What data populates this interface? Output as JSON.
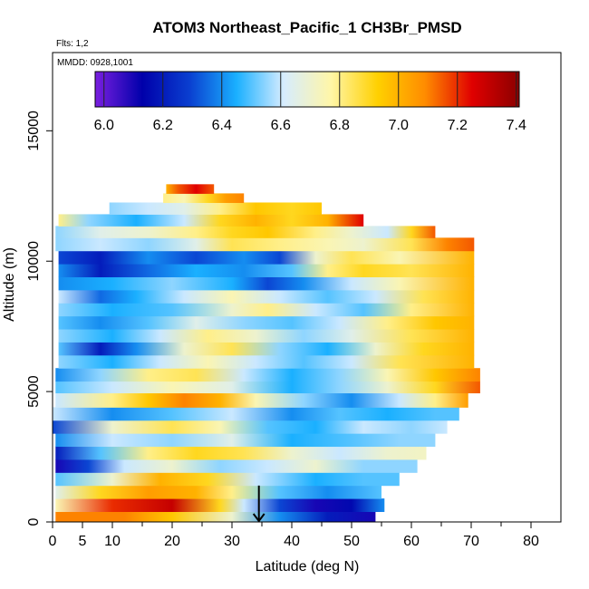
{
  "chart_data": {
    "type": "heatmap",
    "title": "ATOM3 Northeast_Pacific_1 CH3Br_PMSD",
    "flights_note": "Flts: 1,2",
    "mmdd_note": "MMDD: 0928,1001",
    "xlabel": "Latitude (deg N)",
    "ylabel": "Altitude (m)",
    "xlim": [
      0,
      85
    ],
    "ylim": [
      0,
      18000
    ],
    "x_ticks": [
      0,
      5,
      10,
      20,
      30,
      40,
      50,
      60,
      70,
      80
    ],
    "x_tick_labels": [
      "0",
      "5",
      "10",
      "20",
      "30",
      "40",
      "50",
      "60",
      "70",
      "80"
    ],
    "y_ticks": [
      0,
      5000,
      10000,
      15000
    ],
    "y_tick_labels": [
      "0",
      "5000",
      "10000",
      "15000"
    ],
    "grid": false,
    "colorbar": {
      "placement": "top",
      "range": [
        5.97,
        7.41
      ],
      "ticks": [
        6.0,
        6.2,
        6.4,
        6.6,
        6.8,
        7.0,
        7.2,
        7.4
      ],
      "tick_labels": [
        "6.0",
        "6.2",
        "6.4",
        "6.6",
        "6.8",
        "7.0",
        "7.2",
        "7.4"
      ],
      "colors": [
        "#7a1fe0",
        "#0000aa",
        "#0a3fd0",
        "#1ab0ff",
        "#d6ecff",
        "#fff6a8",
        "#ffd000",
        "#ff8c00",
        "#e00000",
        "#8b0000"
      ]
    },
    "marker": {
      "x": 34.5,
      "y_top": 700,
      "y_bottom": 0,
      "symbol": "down-arrow"
    },
    "bands": [
      {
        "y0": 0,
        "y1": 400,
        "x0": 0.5,
        "x1": 54,
        "stops": [
          [
            0.5,
            7.1
          ],
          [
            12,
            7.1
          ],
          [
            20,
            6.95
          ],
          [
            30,
            6.7
          ],
          [
            38,
            6.4
          ],
          [
            46,
            6.2
          ],
          [
            54,
            6.1
          ]
        ]
      },
      {
        "y0": 400,
        "y1": 900,
        "x0": 0.5,
        "x1": 55.5,
        "stops": [
          [
            0.5,
            6.75
          ],
          [
            10,
            7.2
          ],
          [
            20,
            7.3
          ],
          [
            28,
            6.9
          ],
          [
            32,
            6.6
          ],
          [
            38,
            6.3
          ],
          [
            44,
            6.1
          ],
          [
            50,
            6.15
          ],
          [
            55.5,
            6.4
          ]
        ]
      },
      {
        "y0": 900,
        "y1": 1400,
        "x0": 0.5,
        "x1": 55,
        "stops": [
          [
            0.5,
            6.65
          ],
          [
            8,
            6.9
          ],
          [
            16,
            7.05
          ],
          [
            24,
            7.0
          ],
          [
            30,
            6.8
          ],
          [
            38,
            6.5
          ],
          [
            46,
            6.4
          ],
          [
            55,
            6.5
          ]
        ]
      },
      {
        "y0": 1400,
        "y1": 1900,
        "x0": 0.5,
        "x1": 58,
        "stops": [
          [
            0.5,
            6.5
          ],
          [
            10,
            6.7
          ],
          [
            18,
            7.0
          ],
          [
            26,
            6.9
          ],
          [
            34,
            6.6
          ],
          [
            44,
            6.45
          ],
          [
            52,
            6.5
          ],
          [
            58,
            6.5
          ]
        ]
      },
      {
        "y0": 1900,
        "y1": 2400,
        "x0": 0.5,
        "x1": 61,
        "stops": [
          [
            0.5,
            6.1
          ],
          [
            6,
            6.3
          ],
          [
            12,
            6.6
          ],
          [
            20,
            6.7
          ],
          [
            28,
            6.55
          ],
          [
            36,
            6.6
          ],
          [
            44,
            6.7
          ],
          [
            52,
            6.55
          ],
          [
            61,
            6.55
          ]
        ]
      },
      {
        "y0": 2400,
        "y1": 2900,
        "x0": 0.5,
        "x1": 62.5,
        "stops": [
          [
            0.5,
            6.2
          ],
          [
            8,
            6.5
          ],
          [
            16,
            6.8
          ],
          [
            24,
            6.9
          ],
          [
            32,
            6.85
          ],
          [
            40,
            6.7
          ],
          [
            48,
            6.6
          ],
          [
            56,
            6.7
          ],
          [
            62.5,
            6.72
          ]
        ]
      },
      {
        "y0": 2900,
        "y1": 3400,
        "x0": 0.5,
        "x1": 64,
        "stops": [
          [
            0.5,
            6.4
          ],
          [
            10,
            6.6
          ],
          [
            20,
            6.55
          ],
          [
            30,
            6.65
          ],
          [
            40,
            6.45
          ],
          [
            50,
            6.5
          ],
          [
            58,
            6.55
          ],
          [
            64,
            6.55
          ]
        ]
      },
      {
        "y0": 3400,
        "y1": 3900,
        "x0": 0,
        "x1": 66,
        "stops": [
          [
            0,
            6.3
          ],
          [
            10,
            6.7
          ],
          [
            20,
            6.85
          ],
          [
            28,
            6.75
          ],
          [
            36,
            6.5
          ],
          [
            44,
            6.45
          ],
          [
            52,
            6.6
          ],
          [
            60,
            6.55
          ],
          [
            66,
            6.6
          ]
        ]
      },
      {
        "y0": 3900,
        "y1": 4400,
        "x0": 0,
        "x1": 68,
        "stops": [
          [
            0,
            6.6
          ],
          [
            10,
            6.4
          ],
          [
            20,
            6.5
          ],
          [
            30,
            6.6
          ],
          [
            40,
            6.4
          ],
          [
            48,
            6.5
          ],
          [
            56,
            6.45
          ],
          [
            64,
            6.5
          ],
          [
            68,
            6.5
          ]
        ]
      },
      {
        "y0": 4400,
        "y1": 4950,
        "x0": 0.5,
        "x1": 69.5,
        "stops": [
          [
            0.5,
            6.6
          ],
          [
            10,
            6.8
          ],
          [
            16,
            6.95
          ],
          [
            22,
            7.1
          ],
          [
            28,
            7.0
          ],
          [
            34,
            6.75
          ],
          [
            42,
            6.55
          ],
          [
            50,
            6.4
          ],
          [
            58,
            6.6
          ],
          [
            64,
            6.8
          ],
          [
            69.5,
            7.05
          ]
        ]
      },
      {
        "y0": 4950,
        "y1": 5400,
        "x0": 0.5,
        "x1": 71.5,
        "stops": [
          [
            0.5,
            6.5
          ],
          [
            10,
            6.6
          ],
          [
            20,
            6.75
          ],
          [
            30,
            6.65
          ],
          [
            40,
            6.45
          ],
          [
            48,
            6.55
          ],
          [
            56,
            6.7
          ],
          [
            64,
            6.9
          ],
          [
            71.5,
            7.15
          ]
        ]
      },
      {
        "y0": 5400,
        "y1": 5900,
        "x0": 0.5,
        "x1": 71.5,
        "stops": [
          [
            0.5,
            6.4
          ],
          [
            8,
            6.55
          ],
          [
            16,
            6.8
          ],
          [
            24,
            6.85
          ],
          [
            32,
            6.6
          ],
          [
            40,
            6.45
          ],
          [
            48,
            6.55
          ],
          [
            56,
            6.75
          ],
          [
            64,
            6.95
          ],
          [
            71.5,
            7.1
          ]
        ]
      },
      {
        "y0": 5900,
        "y1": 6400,
        "x0": 1,
        "x1": 70.5,
        "stops": [
          [
            1,
            6.55
          ],
          [
            10,
            6.45
          ],
          [
            18,
            6.6
          ],
          [
            26,
            6.75
          ],
          [
            34,
            6.6
          ],
          [
            42,
            6.5
          ],
          [
            50,
            6.6
          ],
          [
            58,
            6.85
          ],
          [
            70.5,
            7.0
          ]
        ]
      },
      {
        "y0": 6400,
        "y1": 6900,
        "x0": 1,
        "x1": 70.5,
        "stops": [
          [
            1,
            6.5
          ],
          [
            8,
            6.2
          ],
          [
            14,
            6.4
          ],
          [
            22,
            6.7
          ],
          [
            30,
            6.85
          ],
          [
            38,
            6.55
          ],
          [
            46,
            6.45
          ],
          [
            54,
            6.7
          ],
          [
            62,
            6.9
          ],
          [
            70.5,
            7.0
          ]
        ]
      },
      {
        "y0": 6900,
        "y1": 7400,
        "x0": 1,
        "x1": 70.5,
        "stops": [
          [
            1,
            6.55
          ],
          [
            10,
            6.45
          ],
          [
            18,
            6.6
          ],
          [
            26,
            6.8
          ],
          [
            34,
            6.7
          ],
          [
            42,
            6.55
          ],
          [
            50,
            6.65
          ],
          [
            60,
            6.85
          ],
          [
            70.5,
            7.0
          ]
        ]
      },
      {
        "y0": 7400,
        "y1": 7900,
        "x0": 1,
        "x1": 70.5,
        "stops": [
          [
            1,
            6.5
          ],
          [
            8,
            6.4
          ],
          [
            16,
            6.5
          ],
          [
            24,
            6.65
          ],
          [
            32,
            6.55
          ],
          [
            40,
            6.5
          ],
          [
            48,
            6.6
          ],
          [
            56,
            6.8
          ],
          [
            64,
            6.95
          ],
          [
            70.5,
            7.0
          ]
        ]
      },
      {
        "y0": 7900,
        "y1": 8400,
        "x0": 1,
        "x1": 70.5,
        "stops": [
          [
            1,
            6.55
          ],
          [
            10,
            6.45
          ],
          [
            20,
            6.5
          ],
          [
            30,
            6.7
          ],
          [
            36,
            6.8
          ],
          [
            44,
            6.6
          ],
          [
            52,
            6.5
          ],
          [
            60,
            6.8
          ],
          [
            70.5,
            7.0
          ]
        ]
      },
      {
        "y0": 8400,
        "y1": 8900,
        "x0": 1,
        "x1": 70.5,
        "stops": [
          [
            1,
            6.6
          ],
          [
            8,
            6.35
          ],
          [
            14,
            6.45
          ],
          [
            22,
            6.6
          ],
          [
            30,
            6.75
          ],
          [
            38,
            6.6
          ],
          [
            46,
            6.5
          ],
          [
            54,
            6.6
          ],
          [
            62,
            6.85
          ],
          [
            70.5,
            7.0
          ]
        ]
      },
      {
        "y0": 8900,
        "y1": 9400,
        "x0": 1,
        "x1": 70.5,
        "stops": [
          [
            1,
            6.4
          ],
          [
            10,
            6.45
          ],
          [
            20,
            6.55
          ],
          [
            30,
            6.45
          ],
          [
            36,
            6.3
          ],
          [
            42,
            6.4
          ],
          [
            50,
            6.6
          ],
          [
            58,
            6.75
          ],
          [
            70.5,
            7.0
          ]
        ]
      },
      {
        "y0": 9400,
        "y1": 9900,
        "x0": 1,
        "x1": 70.5,
        "stops": [
          [
            1,
            6.4
          ],
          [
            8,
            6.2
          ],
          [
            16,
            6.35
          ],
          [
            24,
            6.45
          ],
          [
            32,
            6.4
          ],
          [
            40,
            6.5
          ],
          [
            46,
            6.8
          ],
          [
            52,
            6.9
          ],
          [
            60,
            6.85
          ],
          [
            70.5,
            7.0
          ]
        ]
      },
      {
        "y0": 9900,
        "y1": 10400,
        "x0": 1,
        "x1": 70.5,
        "stops": [
          [
            1,
            6.3
          ],
          [
            8,
            6.2
          ],
          [
            16,
            6.4
          ],
          [
            24,
            6.3
          ],
          [
            32,
            6.4
          ],
          [
            38,
            6.3
          ],
          [
            44,
            6.7
          ],
          [
            50,
            6.85
          ],
          [
            58,
            6.75
          ],
          [
            70.5,
            7.0
          ]
        ]
      },
      {
        "y0": 10400,
        "y1": 10900,
        "x0": 0.5,
        "x1": 70.5,
        "stops": [
          [
            0.5,
            6.55
          ],
          [
            8,
            6.6
          ],
          [
            16,
            6.55
          ],
          [
            24,
            6.65
          ],
          [
            30,
            6.85
          ],
          [
            38,
            6.8
          ],
          [
            46,
            6.75
          ],
          [
            52,
            6.7
          ],
          [
            60,
            6.85
          ],
          [
            66,
            7.1
          ],
          [
            70.5,
            7.15
          ]
        ]
      },
      {
        "y0": 10900,
        "y1": 11350,
        "x0": 0.5,
        "x1": 64,
        "stops": [
          [
            0.5,
            6.55
          ],
          [
            8,
            6.65
          ],
          [
            16,
            6.7
          ],
          [
            24,
            6.8
          ],
          [
            30,
            6.9
          ],
          [
            36,
            6.95
          ],
          [
            44,
            6.8
          ],
          [
            50,
            6.7
          ],
          [
            56,
            6.6
          ],
          [
            60,
            6.9
          ],
          [
            64,
            7.15
          ]
        ]
      },
      {
        "y0": 11350,
        "y1": 11800,
        "x0": 1,
        "x1": 52,
        "stops": [
          [
            1,
            6.8
          ],
          [
            6,
            6.55
          ],
          [
            14,
            6.45
          ],
          [
            22,
            6.6
          ],
          [
            28,
            6.9
          ],
          [
            34,
            7.0
          ],
          [
            40,
            6.9
          ],
          [
            46,
            7.0
          ],
          [
            52,
            7.25
          ]
        ]
      },
      {
        "y0": 11800,
        "y1": 12250,
        "x0": 9.5,
        "x1": 45,
        "stops": [
          [
            9.5,
            6.55
          ],
          [
            16,
            6.6
          ],
          [
            22,
            6.65
          ],
          [
            28,
            6.8
          ],
          [
            34,
            6.95
          ],
          [
            40,
            6.9
          ],
          [
            45,
            6.95
          ]
        ]
      },
      {
        "y0": 12250,
        "y1": 12600,
        "x0": 18.5,
        "x1": 32,
        "stops": [
          [
            18.5,
            6.8
          ],
          [
            22,
            6.75
          ],
          [
            26,
            6.9
          ],
          [
            29,
            7.05
          ],
          [
            32,
            7.1
          ]
        ]
      },
      {
        "y0": 12600,
        "y1": 12950,
        "x0": 19,
        "x1": 27,
        "stops": [
          [
            19,
            7.0
          ],
          [
            21,
            7.15
          ],
          [
            24,
            7.25
          ],
          [
            27,
            7.15
          ]
        ]
      }
    ]
  }
}
